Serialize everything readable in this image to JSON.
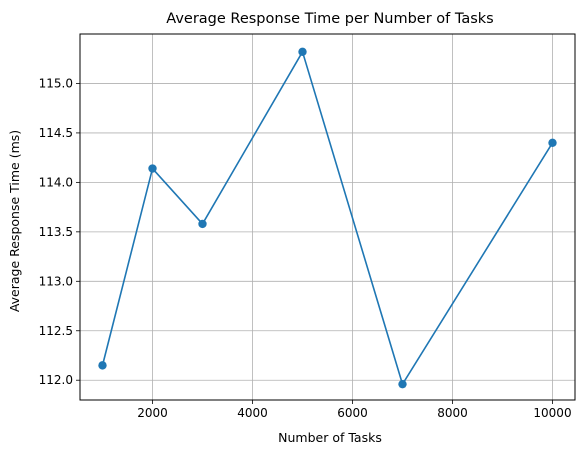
{
  "chart_data": {
    "type": "line",
    "title": "Average Response Time per Number of Tasks",
    "xlabel": "Number of Tasks",
    "ylabel": "Average Response Time (ms)",
    "xlim": [
      550,
      10450
    ],
    "ylim": [
      111.8,
      115.5
    ],
    "x_ticks": [
      2000,
      4000,
      6000,
      8000,
      10000
    ],
    "x_tick_labels": [
      "2000",
      "4000",
      "6000",
      "8000",
      "10000"
    ],
    "y_ticks": [
      112.0,
      112.5,
      113.0,
      113.5,
      114.0,
      114.5,
      115.0
    ],
    "y_tick_labels": [
      "112.0",
      "112.5",
      "113.0",
      "113.5",
      "114.0",
      "114.5",
      "115.0"
    ],
    "grid": true,
    "legend": "none",
    "series": [
      {
        "color": "#1f77b4",
        "marker": "circle",
        "x": [
          1000,
          2000,
          3000,
          5000,
          7000,
          10000
        ],
        "y": [
          112.15,
          114.14,
          113.58,
          115.32,
          111.96,
          114.4
        ]
      }
    ]
  }
}
